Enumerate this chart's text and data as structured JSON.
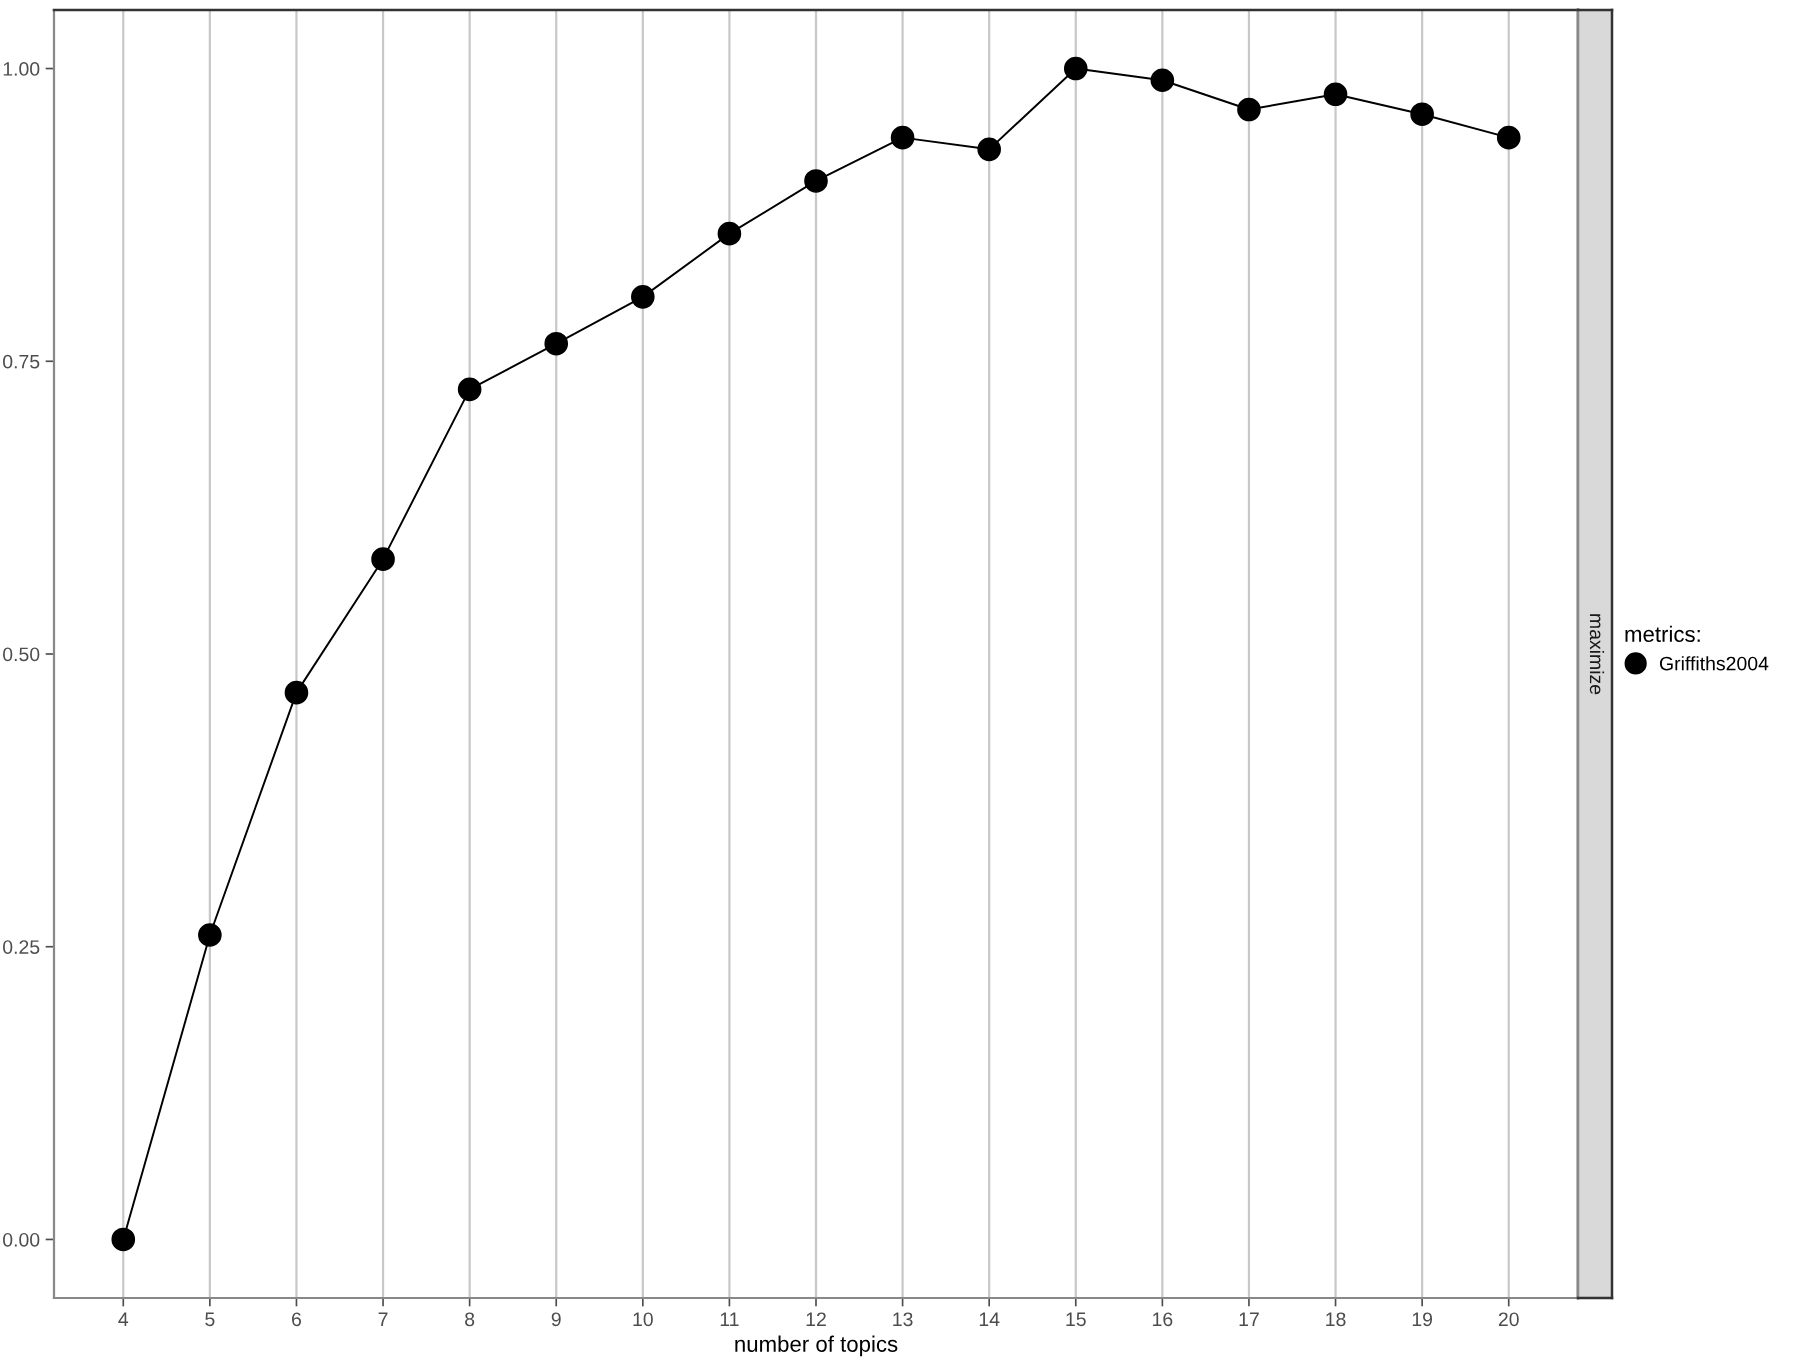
{
  "chart_data": {
    "type": "line",
    "xlabel": "number of topics",
    "legend_title": "metrics:",
    "annotations": [
      "maximize"
    ],
    "x": [
      4,
      5,
      6,
      7,
      8,
      9,
      10,
      11,
      12,
      13,
      14,
      15,
      16,
      17,
      18,
      19,
      20
    ],
    "series": [
      {
        "name": "Griffiths2004",
        "color": "#000000",
        "values": [
          0.0,
          0.26,
          0.467,
          0.581,
          0.726,
          0.765,
          0.805,
          0.859,
          0.904,
          0.941,
          0.931,
          1.0,
          0.99,
          0.965,
          0.978,
          0.961,
          0.941
        ]
      }
    ],
    "xlim": [
      3.2,
      20.8
    ],
    "xticks": [
      4,
      5,
      6,
      7,
      8,
      9,
      10,
      11,
      12,
      13,
      14,
      15,
      16,
      17,
      18,
      19,
      20
    ],
    "ylim": [
      -0.05,
      1.05
    ],
    "yticks": [
      {
        "value": 0,
        "label": "0.00"
      },
      {
        "value": 0.25,
        "label": "0.25"
      },
      {
        "value": 0.5,
        "label": "0.50"
      },
      {
        "value": 0.75,
        "label": "0.75"
      },
      {
        "value": 1,
        "label": "1.00"
      }
    ],
    "grid": "x",
    "legend": "right",
    "marker": "circle",
    "line_style": "solid"
  }
}
